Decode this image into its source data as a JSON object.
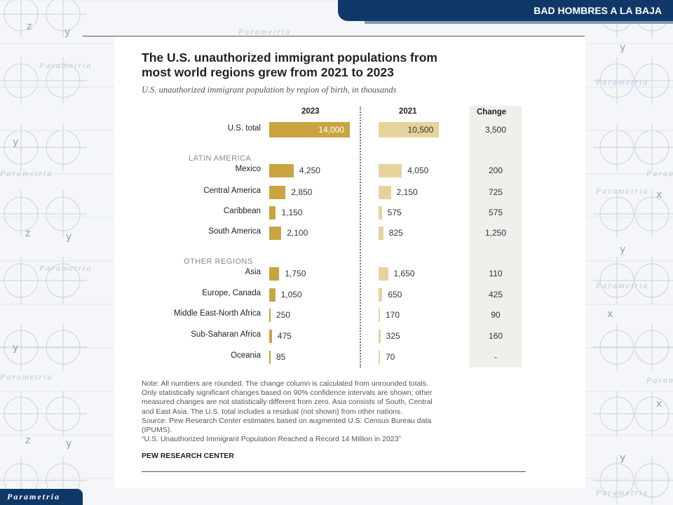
{
  "header": {
    "banner_text": "BAD HOMBRES A LA BAJA"
  },
  "logo": {
    "text": "Parametria"
  },
  "watermark": {
    "text": "Parametria",
    "axis_x": "x",
    "axis_y": "y",
    "axis_z": "z"
  },
  "colors": {
    "bar_2023": "#c9a440",
    "bar_2021": "#e6d29c",
    "banner": "#0f3868",
    "change_bg": "#efefec"
  },
  "chart_data": {
    "type": "bar",
    "title": "The U.S. unauthorized immigrant populations from most world regions grew from 2021 to 2023",
    "title_line1": "The U.S. unauthorized immigrant populations from",
    "title_line2": "most world regions grew from 2021 to 2023",
    "subtitle": "U.S. unauthorized immigrant population by region of birth, in thousands",
    "columns": {
      "y2023": "2023",
      "y2021": "2021",
      "change": "Change"
    },
    "sections": {
      "latin_america": "LATIN AMERICA",
      "other_regions": "OTHER REGIONS"
    },
    "rows": [
      {
        "label": "U.S. total",
        "v2023": 14000,
        "d2023": "14,000",
        "v2021": 10500,
        "d2021": "10,500",
        "change": "3,500",
        "total": true
      },
      {
        "label": "Mexico",
        "v2023": 4250,
        "d2023": "4,250",
        "v2021": 4050,
        "d2021": "4,050",
        "change": "200"
      },
      {
        "label": "Central America",
        "v2023": 2850,
        "d2023": "2,850",
        "v2021": 2150,
        "d2021": "2,150",
        "change": "725"
      },
      {
        "label": "Caribbean",
        "v2023": 1150,
        "d2023": "1,150",
        "v2021": 575,
        "d2021": "575",
        "change": "575"
      },
      {
        "label": "South America",
        "v2023": 2100,
        "d2023": "2,100",
        "v2021": 825,
        "d2021": "825",
        "change": "1,250"
      },
      {
        "label": "Asia",
        "v2023": 1750,
        "d2023": "1,750",
        "v2021": 1650,
        "d2021": "1,650",
        "change": "110"
      },
      {
        "label": "Europe, Canada",
        "v2023": 1050,
        "d2023": "1,050",
        "v2021": 650,
        "d2021": "650",
        "change": "425"
      },
      {
        "label": "Middle East-North Africa",
        "v2023": 250,
        "d2023": "250",
        "v2021": 170,
        "d2021": "170",
        "change": "90"
      },
      {
        "label": "Sub-Saharan Africa",
        "v2023": 475,
        "d2023": "475",
        "v2021": 325,
        "d2021": "325",
        "change": "160"
      },
      {
        "label": "Oceania",
        "v2023": 85,
        "d2023": "85",
        "v2021": 70,
        "d2021": "70",
        "change": "-"
      }
    ],
    "notes": [
      "Note: All numbers are rounded. The change column is calculated from unrounded totals.",
      "Only statistically significant changes based on 90% confidence intervals are shown; other",
      "measured changes are not statistically different from zero. Asia consists of South, Central",
      "and East Asia. The U.S. total includes a residual (not shown) from other nations.",
      "Source: Pew Research Center estimates based on augmented U.S. Census Bureau data",
      "(IPUMS).",
      "“U.S. Unauthorized Immigrant Population Reached a Record 14 Million in 2023”"
    ],
    "source_org": "PEW RESEARCH CENTER"
  }
}
